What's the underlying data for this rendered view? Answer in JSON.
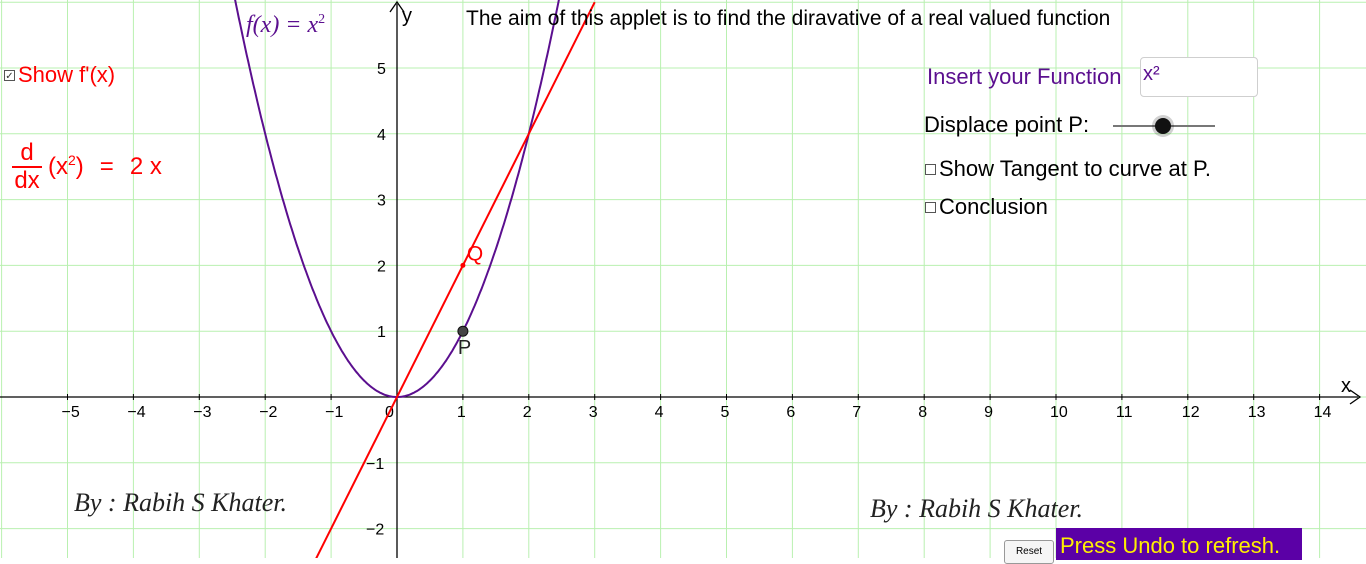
{
  "function_title": {
    "prefix": "f(x)  =  x",
    "exponent": "2"
  },
  "aim_text": "The aim of this applet is to find the diravative of a real valued function",
  "show_derivative": {
    "label": "Show f'(x)",
    "checked": true
  },
  "derivative_expression": {
    "numerator": "d",
    "denominator": "dx",
    "base": "(x",
    "exponent": "2",
    "close": ")",
    "equals": "=",
    "result": "2 x"
  },
  "insert_function": {
    "label": "Insert your Function",
    "value": "x²"
  },
  "displace_point": {
    "label": "Displace point P:",
    "value_fraction": 0.5
  },
  "show_tangent": {
    "label": "Show Tangent to curve at P.",
    "checked": false
  },
  "conclusion": {
    "label": "Conclusion",
    "checked": false
  },
  "byline_left": "By : Rabih S Khater.",
  "byline_right": "By : Rabih S Khater.",
  "reset_button": "Reset",
  "undo_notice": "Press Undo to refresh.",
  "graph": {
    "x_axis_label": "x",
    "y_axis_label": "y",
    "x_ticks": [
      "−5",
      "−4",
      "−3",
      "−2",
      "−1",
      "0",
      "1",
      "2",
      "3",
      "4",
      "5",
      "6",
      "7",
      "8",
      "9",
      "10",
      "11",
      "12",
      "13",
      "14"
    ],
    "y_ticks_pos": [
      "1",
      "2",
      "3",
      "4",
      "5"
    ],
    "y_ticks_neg": [
      "−1",
      "−2"
    ],
    "point_p": {
      "label": "P",
      "x": 1,
      "y": 1
    },
    "point_q": {
      "label": "Q",
      "x": 1,
      "y": 2
    },
    "curve_color": "#5b0f8f",
    "line_color": "#ff0000",
    "grid_color": "#b9f0b0"
  }
}
